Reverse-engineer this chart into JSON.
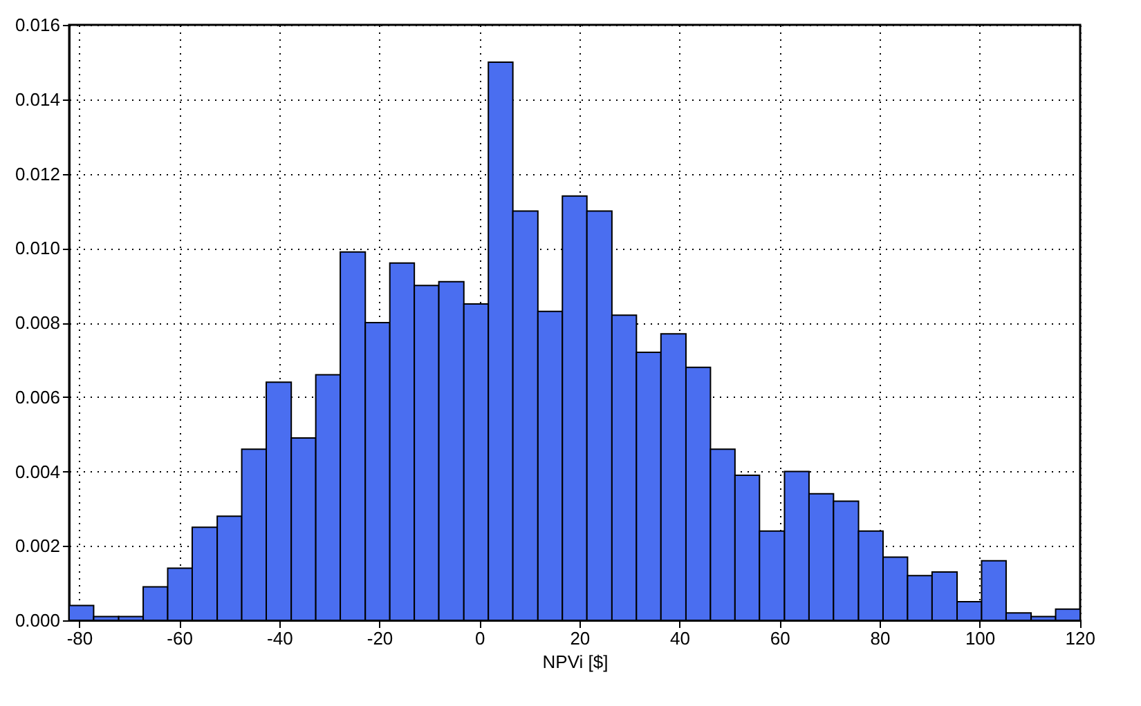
{
  "chart_data": {
    "type": "histogram",
    "xlabel": "NPVi [$]",
    "color": "#4a6ef0",
    "bins": [
      -82.0,
      -77.1,
      -72.1,
      -67.2,
      -62.3,
      -57.4,
      -52.4,
      -47.5,
      -42.6,
      -37.6,
      -32.7,
      -27.8,
      -22.8,
      -17.9,
      -13.0,
      -8.1,
      -3.1,
      1.8,
      6.7,
      11.7,
      16.6,
      21.5,
      26.5,
      31.4,
      36.3,
      41.3,
      46.2,
      51.1,
      56.0,
      61.0,
      65.9,
      70.8,
      75.8,
      80.7,
      85.6,
      90.5,
      95.5,
      100.4,
      105.3,
      110.3,
      115.2,
      120.1
    ],
    "values": [
      0.0004,
      0.0001,
      0.0001,
      0.0009,
      0.0014,
      0.0025,
      0.0028,
      0.0046,
      0.0064,
      0.0049,
      0.0066,
      0.0099,
      0.008,
      0.0096,
      0.009,
      0.0091,
      0.0085,
      0.015,
      0.011,
      0.0083,
      0.0114,
      0.011,
      0.0082,
      0.0072,
      0.0077,
      0.0068,
      0.0046,
      0.0039,
      0.0024,
      0.004,
      0.0034,
      0.0032,
      0.0024,
      0.0017,
      0.0012,
      0.0013,
      0.0005,
      0.0016,
      0.0002,
      0.0001,
      0.0003
    ],
    "xlim": [
      -82.0,
      120.1
    ],
    "xticks": [
      -80,
      -60,
      -40,
      -20,
      0,
      20,
      40,
      60,
      80,
      100,
      120
    ],
    "ylim": [
      0,
      0.016
    ],
    "yticks": [
      {
        "value": 0,
        "label": "0.000"
      },
      {
        "value": 0.002,
        "label": "0.002"
      },
      {
        "value": 0.004,
        "label": "0.004"
      },
      {
        "value": 0.006,
        "label": "0.006"
      },
      {
        "value": 0.008,
        "label": "0.008"
      },
      {
        "value": 0.01,
        "label": "0.010"
      },
      {
        "value": 0.012,
        "label": "0.012"
      },
      {
        "value": 0.014,
        "label": "0.014"
      },
      {
        "value": 0.016,
        "label": "0.016"
      }
    ],
    "grid": true
  }
}
